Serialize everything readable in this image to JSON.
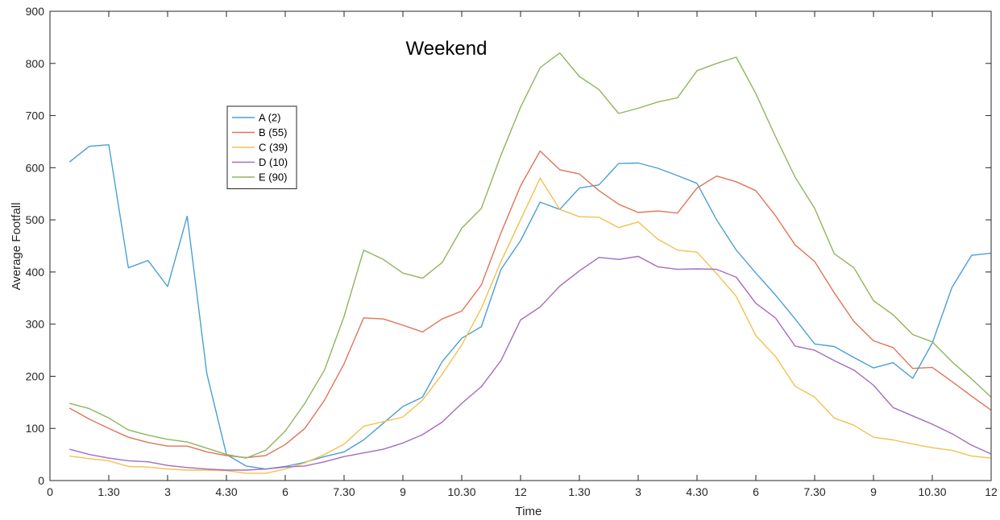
{
  "chart_data": {
    "type": "line",
    "title": "Weekend",
    "xlabel": "Time",
    "ylabel": "Average Footfall",
    "xlim": [
      0,
      48
    ],
    "ylim": [
      0,
      900
    ],
    "x_ticks": [
      0,
      3,
      6,
      9,
      12,
      15,
      18,
      21,
      24,
      27,
      30,
      33,
      36,
      39,
      42,
      45,
      48
    ],
    "x_tick_labels": [
      "0",
      "1.30",
      "3",
      "4.30",
      "6",
      "7.30",
      "9",
      "10.30",
      "12",
      "1.30",
      "3",
      "4.30",
      "6",
      "7.30",
      "9",
      "10.30",
      "12"
    ],
    "y_ticks": [
      0,
      100,
      200,
      300,
      400,
      500,
      600,
      700,
      800,
      900
    ],
    "y_tick_labels": [
      "0",
      "100",
      "200",
      "300",
      "400",
      "500",
      "600",
      "700",
      "800",
      "900"
    ],
    "grid": false,
    "legend_position": "upper-left",
    "x": [
      1,
      2,
      3,
      4,
      5,
      6,
      7,
      8,
      9,
      10,
      11,
      12,
      13,
      14,
      15,
      16,
      17,
      18,
      19,
      20,
      21,
      22,
      23,
      24,
      25,
      26,
      27,
      28,
      29,
      30,
      31,
      32,
      33,
      34,
      35,
      36,
      37,
      38,
      39,
      40,
      41,
      42,
      43,
      44,
      45,
      46,
      47,
      48
    ],
    "series": [
      {
        "name": "A (2)",
        "color": "#4a9fd4",
        "values": [
          611,
          641,
          644,
          408,
          422,
          372,
          507,
          205,
          50,
          28,
          22,
          27,
          35,
          46,
          55,
          78,
          110,
          142,
          160,
          228,
          273,
          295,
          405,
          460,
          534,
          520,
          561,
          567,
          608,
          609,
          599,
          585,
          570,
          500,
          442,
          398,
          356,
          310,
          262,
          257,
          236,
          216,
          226,
          196,
          264,
          370,
          432,
          436
        ]
      },
      {
        "name": "B (55)",
        "color": "#e07458",
        "values": [
          139,
          118,
          100,
          83,
          73,
          66,
          66,
          55,
          48,
          44,
          48,
          69,
          100,
          154,
          224,
          312,
          310,
          298,
          285,
          310,
          325,
          375,
          475,
          565,
          632,
          596,
          588,
          556,
          530,
          514,
          517,
          513,
          561,
          584,
          573,
          556,
          508,
          452,
          420,
          360,
          305,
          268,
          255,
          215,
          217,
          190,
          162,
          135
        ]
      },
      {
        "name": "C (39)",
        "color": "#f2c14e",
        "values": [
          47,
          42,
          38,
          27,
          26,
          22,
          20,
          20,
          19,
          14,
          14,
          22,
          34,
          50,
          70,
          104,
          113,
          122,
          154,
          204,
          260,
          330,
          420,
          500,
          580,
          520,
          506,
          505,
          485,
          496,
          463,
          442,
          438,
          397,
          353,
          278,
          238,
          181,
          160,
          120,
          106,
          83,
          78,
          70,
          63,
          58,
          47,
          43
        ]
      },
      {
        "name": "D (10)",
        "color": "#a56bbc",
        "values": [
          60,
          50,
          43,
          38,
          36,
          29,
          25,
          22,
          20,
          20,
          22,
          26,
          28,
          36,
          46,
          53,
          60,
          72,
          88,
          112,
          148,
          180,
          230,
          308,
          333,
          373,
          402,
          428,
          424,
          430,
          410,
          405,
          406,
          405,
          390,
          340,
          312,
          258,
          250,
          230,
          212,
          183,
          140,
          124,
          108,
          90,
          68,
          51
        ]
      },
      {
        "name": "E (90)",
        "color": "#8fb55c",
        "values": [
          148,
          138,
          120,
          97,
          87,
          79,
          74,
          62,
          50,
          43,
          58,
          95,
          148,
          212,
          315,
          442,
          424,
          398,
          388,
          418,
          484,
          522,
          624,
          716,
          792,
          820,
          775,
          750,
          704,
          714,
          726,
          734,
          786,
          800,
          812,
          742,
          660,
          582,
          522,
          435,
          408,
          345,
          318,
          280,
          266,
          228,
          195,
          160
        ]
      }
    ]
  }
}
